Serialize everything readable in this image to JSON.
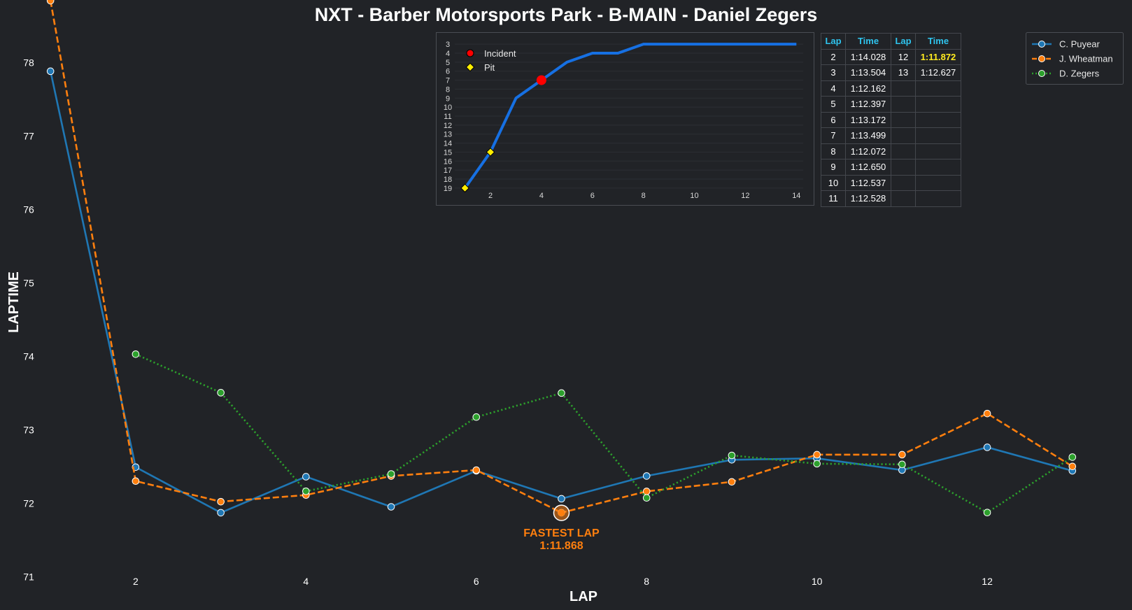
{
  "chart_data": [
    {
      "type": "line",
      "title": "NXT - Barber Motorsports Park - B-MAIN - Daniel Zegers",
      "xlabel": "LAP",
      "ylabel": "LAPTIME",
      "xlim": [
        0.9,
        13.7
      ],
      "ylim": [
        70.85,
        78.85
      ],
      "x_ticks": [
        2,
        4,
        6,
        8,
        10,
        12
      ],
      "y_ticks": [
        71,
        72,
        73,
        74,
        75,
        76,
        77,
        78
      ],
      "grid": false,
      "legend_position": "top-right",
      "series": [
        {
          "name": "C. Puyear",
          "color": "#1f77b4",
          "dash": "solid",
          "x": [
            1,
            2,
            3,
            4,
            5,
            6,
            7,
            8,
            9,
            10,
            11,
            12,
            13
          ],
          "values": [
            77.88,
            72.49,
            71.87,
            72.36,
            71.95,
            72.44,
            72.06,
            72.37,
            72.59,
            72.61,
            72.45,
            72.76,
            72.44
          ]
        },
        {
          "name": "J. Wheatman",
          "color": "#ff7f0e",
          "dash": "dashed",
          "x": [
            1,
            2,
            3,
            4,
            5,
            6,
            7,
            8,
            9,
            10,
            11,
            12,
            13
          ],
          "values": [
            78.84,
            72.3,
            72.02,
            72.11,
            72.37,
            72.45,
            71.87,
            72.16,
            72.29,
            72.66,
            72.66,
            73.22,
            72.5
          ]
        },
        {
          "name": "D. Zegers",
          "color": "#2ca02c",
          "dash": "dotted",
          "x": [
            2,
            3,
            4,
            5,
            6,
            7,
            8,
            9,
            10,
            11,
            12,
            13
          ],
          "values": [
            74.028,
            73.504,
            72.162,
            72.397,
            73.172,
            73.499,
            72.072,
            72.65,
            72.537,
            72.528,
            71.872,
            72.627
          ]
        }
      ],
      "annotation": {
        "label": "FASTEST LAP",
        "value": "1:11.868",
        "x": 7,
        "y": 71.868,
        "color": "#ff7f0e"
      }
    },
    {
      "type": "line",
      "title": "",
      "y_reversed": true,
      "xlim": [
        0.6,
        14.65
      ],
      "ylim": [
        19.4,
        2.6
      ],
      "x_ticks": [
        2,
        4,
        6,
        8,
        10,
        12,
        14
      ],
      "y_ticks": [
        3,
        4,
        5,
        6,
        7,
        8,
        9,
        10,
        11,
        12,
        13,
        14,
        15,
        16,
        17,
        18,
        19
      ],
      "line_color": "#1670e3",
      "x": [
        1,
        2,
        3,
        4,
        5,
        6,
        7,
        8,
        9,
        10,
        11,
        12,
        13,
        14
      ],
      "values": [
        19,
        15,
        9,
        7,
        5,
        4,
        4,
        3,
        3,
        3,
        3,
        3,
        3,
        3
      ],
      "legend": {
        "incident_label": "Incident",
        "pit_label": "Pit",
        "incident_color": "#ff0000",
        "pit_color": "#ffee00"
      },
      "incidents": [
        {
          "x": 4,
          "y": 7
        }
      ],
      "pits": [
        {
          "x": 1,
          "y": 19
        },
        {
          "x": 2,
          "y": 15
        }
      ]
    }
  ],
  "lap_table": {
    "headers": [
      "Lap",
      "Time",
      "Lap",
      "Time"
    ],
    "rows": [
      [
        "2",
        "1:14.028",
        "12",
        "1:11.872"
      ],
      [
        "3",
        "1:13.504",
        "13",
        "1:12.627"
      ],
      [
        "4",
        "1:12.162",
        "",
        ""
      ],
      [
        "5",
        "1:12.397",
        "",
        ""
      ],
      [
        "6",
        "1:13.172",
        "",
        ""
      ],
      [
        "7",
        "1:13.499",
        "",
        ""
      ],
      [
        "8",
        "1:12.072",
        "",
        ""
      ],
      [
        "9",
        "1:12.650",
        "",
        ""
      ],
      [
        "10",
        "1:12.537",
        "",
        ""
      ],
      [
        "11",
        "1:12.528",
        "",
        ""
      ]
    ],
    "best_time": "1:11.872",
    "header_color": "#2fc4ee",
    "best_color": "#ffeb1f"
  },
  "colors": {
    "background": "#212327",
    "text": "#ffffff",
    "frame": "#4a4d53"
  }
}
